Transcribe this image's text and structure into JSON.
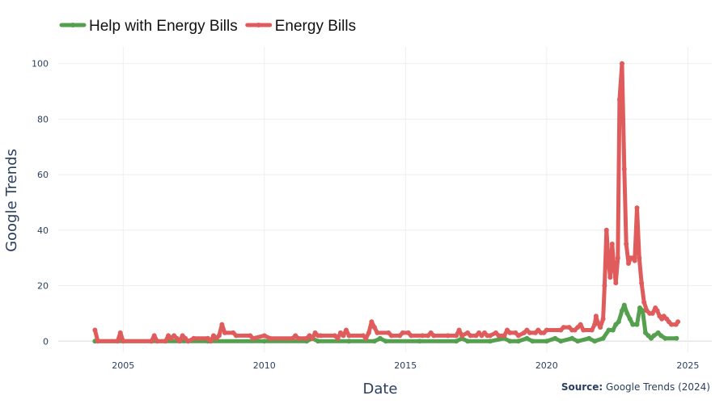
{
  "chart_data": {
    "type": "line",
    "xlabel": "Date",
    "ylabel": "Google Trends",
    "xlim": [
      2002.7,
      2025.85
    ],
    "ylim": [
      -4,
      106
    ],
    "x_ticks": [
      "2005",
      "2010",
      "2015",
      "2020",
      "2025"
    ],
    "y_ticks": [
      "0",
      "20",
      "40",
      "60",
      "80",
      "100"
    ],
    "grid": true,
    "legend_placement": "top-left, horizontal",
    "source": {
      "label": "Source:",
      "text": " Google Trends (2024)"
    },
    "series": [
      {
        "name": "Help with Energy Bills",
        "color": "#55a04f",
        "points": [
          [
            2004.0,
            0
          ],
          [
            2006.0,
            0
          ],
          [
            2008.0,
            0
          ],
          [
            2010.0,
            0
          ],
          [
            2011.5,
            0
          ],
          [
            2011.7,
            1
          ],
          [
            2011.9,
            0
          ],
          [
            2013.0,
            0
          ],
          [
            2013.9,
            0
          ],
          [
            2014.1,
            1
          ],
          [
            2014.3,
            0
          ],
          [
            2015.5,
            0
          ],
          [
            2016.8,
            0
          ],
          [
            2017.0,
            1
          ],
          [
            2017.2,
            0
          ],
          [
            2018.0,
            0
          ],
          [
            2018.5,
            1
          ],
          [
            2018.7,
            0
          ],
          [
            2019.0,
            0
          ],
          [
            2019.3,
            1
          ],
          [
            2019.5,
            0
          ],
          [
            2020.0,
            0
          ],
          [
            2020.3,
            1
          ],
          [
            2020.5,
            0
          ],
          [
            2020.9,
            1
          ],
          [
            2021.1,
            0
          ],
          [
            2021.5,
            1
          ],
          [
            2021.7,
            0
          ],
          [
            2022.0,
            1
          ],
          [
            2022.2,
            4
          ],
          [
            2022.35,
            4
          ],
          [
            2022.45,
            6
          ],
          [
            2022.55,
            7
          ],
          [
            2022.67,
            11
          ],
          [
            2022.75,
            13
          ],
          [
            2022.85,
            10
          ],
          [
            2022.95,
            8
          ],
          [
            2023.05,
            6
          ],
          [
            2023.2,
            6
          ],
          [
            2023.3,
            12
          ],
          [
            2023.4,
            11
          ],
          [
            2023.5,
            3
          ],
          [
            2023.6,
            2
          ],
          [
            2023.7,
            1
          ],
          [
            2023.8,
            2
          ],
          [
            2023.95,
            3
          ],
          [
            2024.05,
            2
          ],
          [
            2024.2,
            1
          ],
          [
            2024.6,
            1
          ]
        ]
      },
      {
        "name": "Energy Bills",
        "color": "#e05c5c",
        "points": [
          [
            2004.0,
            4
          ],
          [
            2004.1,
            0
          ],
          [
            2004.8,
            0
          ],
          [
            2004.9,
            3
          ],
          [
            2005.0,
            0
          ],
          [
            2006.0,
            0
          ],
          [
            2006.1,
            2
          ],
          [
            2006.2,
            0
          ],
          [
            2006.5,
            0
          ],
          [
            2006.6,
            2
          ],
          [
            2006.7,
            1
          ],
          [
            2006.8,
            2
          ],
          [
            2006.9,
            1
          ],
          [
            2007.0,
            0
          ],
          [
            2007.1,
            2
          ],
          [
            2007.2,
            1
          ],
          [
            2007.3,
            0
          ],
          [
            2007.5,
            1
          ],
          [
            2008.0,
            1
          ],
          [
            2008.1,
            0
          ],
          [
            2008.2,
            2
          ],
          [
            2008.3,
            1
          ],
          [
            2008.4,
            2
          ],
          [
            2008.5,
            6
          ],
          [
            2008.6,
            3
          ],
          [
            2008.9,
            3
          ],
          [
            2009.0,
            2
          ],
          [
            2009.5,
            2
          ],
          [
            2009.6,
            1
          ],
          [
            2010.0,
            2
          ],
          [
            2010.2,
            1
          ],
          [
            2011.0,
            1
          ],
          [
            2011.1,
            2
          ],
          [
            2011.2,
            1
          ],
          [
            2011.5,
            1
          ],
          [
            2011.6,
            2
          ],
          [
            2011.7,
            1
          ],
          [
            2011.8,
            3
          ],
          [
            2011.9,
            2
          ],
          [
            2012.0,
            2
          ],
          [
            2012.5,
            2
          ],
          [
            2012.6,
            1
          ],
          [
            2012.7,
            3
          ],
          [
            2012.8,
            2
          ],
          [
            2012.9,
            4
          ],
          [
            2013.0,
            2
          ],
          [
            2013.5,
            2
          ],
          [
            2013.6,
            1
          ],
          [
            2013.7,
            3
          ],
          [
            2013.8,
            7
          ],
          [
            2013.9,
            5
          ],
          [
            2014.0,
            3
          ],
          [
            2014.4,
            3
          ],
          [
            2014.5,
            2
          ],
          [
            2014.8,
            2
          ],
          [
            2014.9,
            3
          ],
          [
            2015.1,
            3
          ],
          [
            2015.2,
            2
          ],
          [
            2015.6,
            2
          ],
          [
            2015.8,
            2
          ],
          [
            2015.9,
            3
          ],
          [
            2016.0,
            2
          ],
          [
            2016.5,
            2
          ],
          [
            2016.8,
            2
          ],
          [
            2016.9,
            4
          ],
          [
            2017.0,
            2
          ],
          [
            2017.2,
            3
          ],
          [
            2017.3,
            2
          ],
          [
            2017.5,
            2
          ],
          [
            2017.6,
            3
          ],
          [
            2017.7,
            2
          ],
          [
            2017.8,
            3
          ],
          [
            2017.9,
            2
          ],
          [
            2018.0,
            2
          ],
          [
            2018.2,
            3
          ],
          [
            2018.3,
            2
          ],
          [
            2018.5,
            2
          ],
          [
            2018.6,
            4
          ],
          [
            2018.7,
            3
          ],
          [
            2018.9,
            3
          ],
          [
            2019.0,
            2
          ],
          [
            2019.2,
            3
          ],
          [
            2019.3,
            4
          ],
          [
            2019.4,
            3
          ],
          [
            2019.6,
            3
          ],
          [
            2019.7,
            4
          ],
          [
            2019.8,
            3
          ],
          [
            2019.9,
            3
          ],
          [
            2020.0,
            4
          ],
          [
            2020.5,
            4
          ],
          [
            2020.6,
            5
          ],
          [
            2020.8,
            5
          ],
          [
            2020.9,
            4
          ],
          [
            2021.0,
            4
          ],
          [
            2021.1,
            5
          ],
          [
            2021.2,
            6
          ],
          [
            2021.3,
            4
          ],
          [
            2021.6,
            4
          ],
          [
            2021.7,
            6
          ],
          [
            2021.75,
            9
          ],
          [
            2021.8,
            7
          ],
          [
            2021.9,
            5
          ],
          [
            2022.0,
            8
          ],
          [
            2022.05,
            20
          ],
          [
            2022.12,
            40
          ],
          [
            2022.18,
            30
          ],
          [
            2022.25,
            23
          ],
          [
            2022.32,
            35
          ],
          [
            2022.38,
            27
          ],
          [
            2022.45,
            21
          ],
          [
            2022.52,
            30
          ],
          [
            2022.58,
            87
          ],
          [
            2022.67,
            100
          ],
          [
            2022.75,
            62
          ],
          [
            2022.82,
            35
          ],
          [
            2022.9,
            28
          ],
          [
            2022.98,
            30
          ],
          [
            2023.05,
            30
          ],
          [
            2023.12,
            29
          ],
          [
            2023.2,
            48
          ],
          [
            2023.28,
            30
          ],
          [
            2023.36,
            21
          ],
          [
            2023.45,
            14
          ],
          [
            2023.55,
            11
          ],
          [
            2023.65,
            10
          ],
          [
            2023.75,
            10
          ],
          [
            2023.85,
            12
          ],
          [
            2023.92,
            11
          ],
          [
            2024.0,
            9
          ],
          [
            2024.08,
            8
          ],
          [
            2024.15,
            9
          ],
          [
            2024.25,
            8
          ],
          [
            2024.33,
            7
          ],
          [
            2024.42,
            6
          ],
          [
            2024.58,
            6
          ],
          [
            2024.65,
            7
          ]
        ]
      }
    ]
  }
}
